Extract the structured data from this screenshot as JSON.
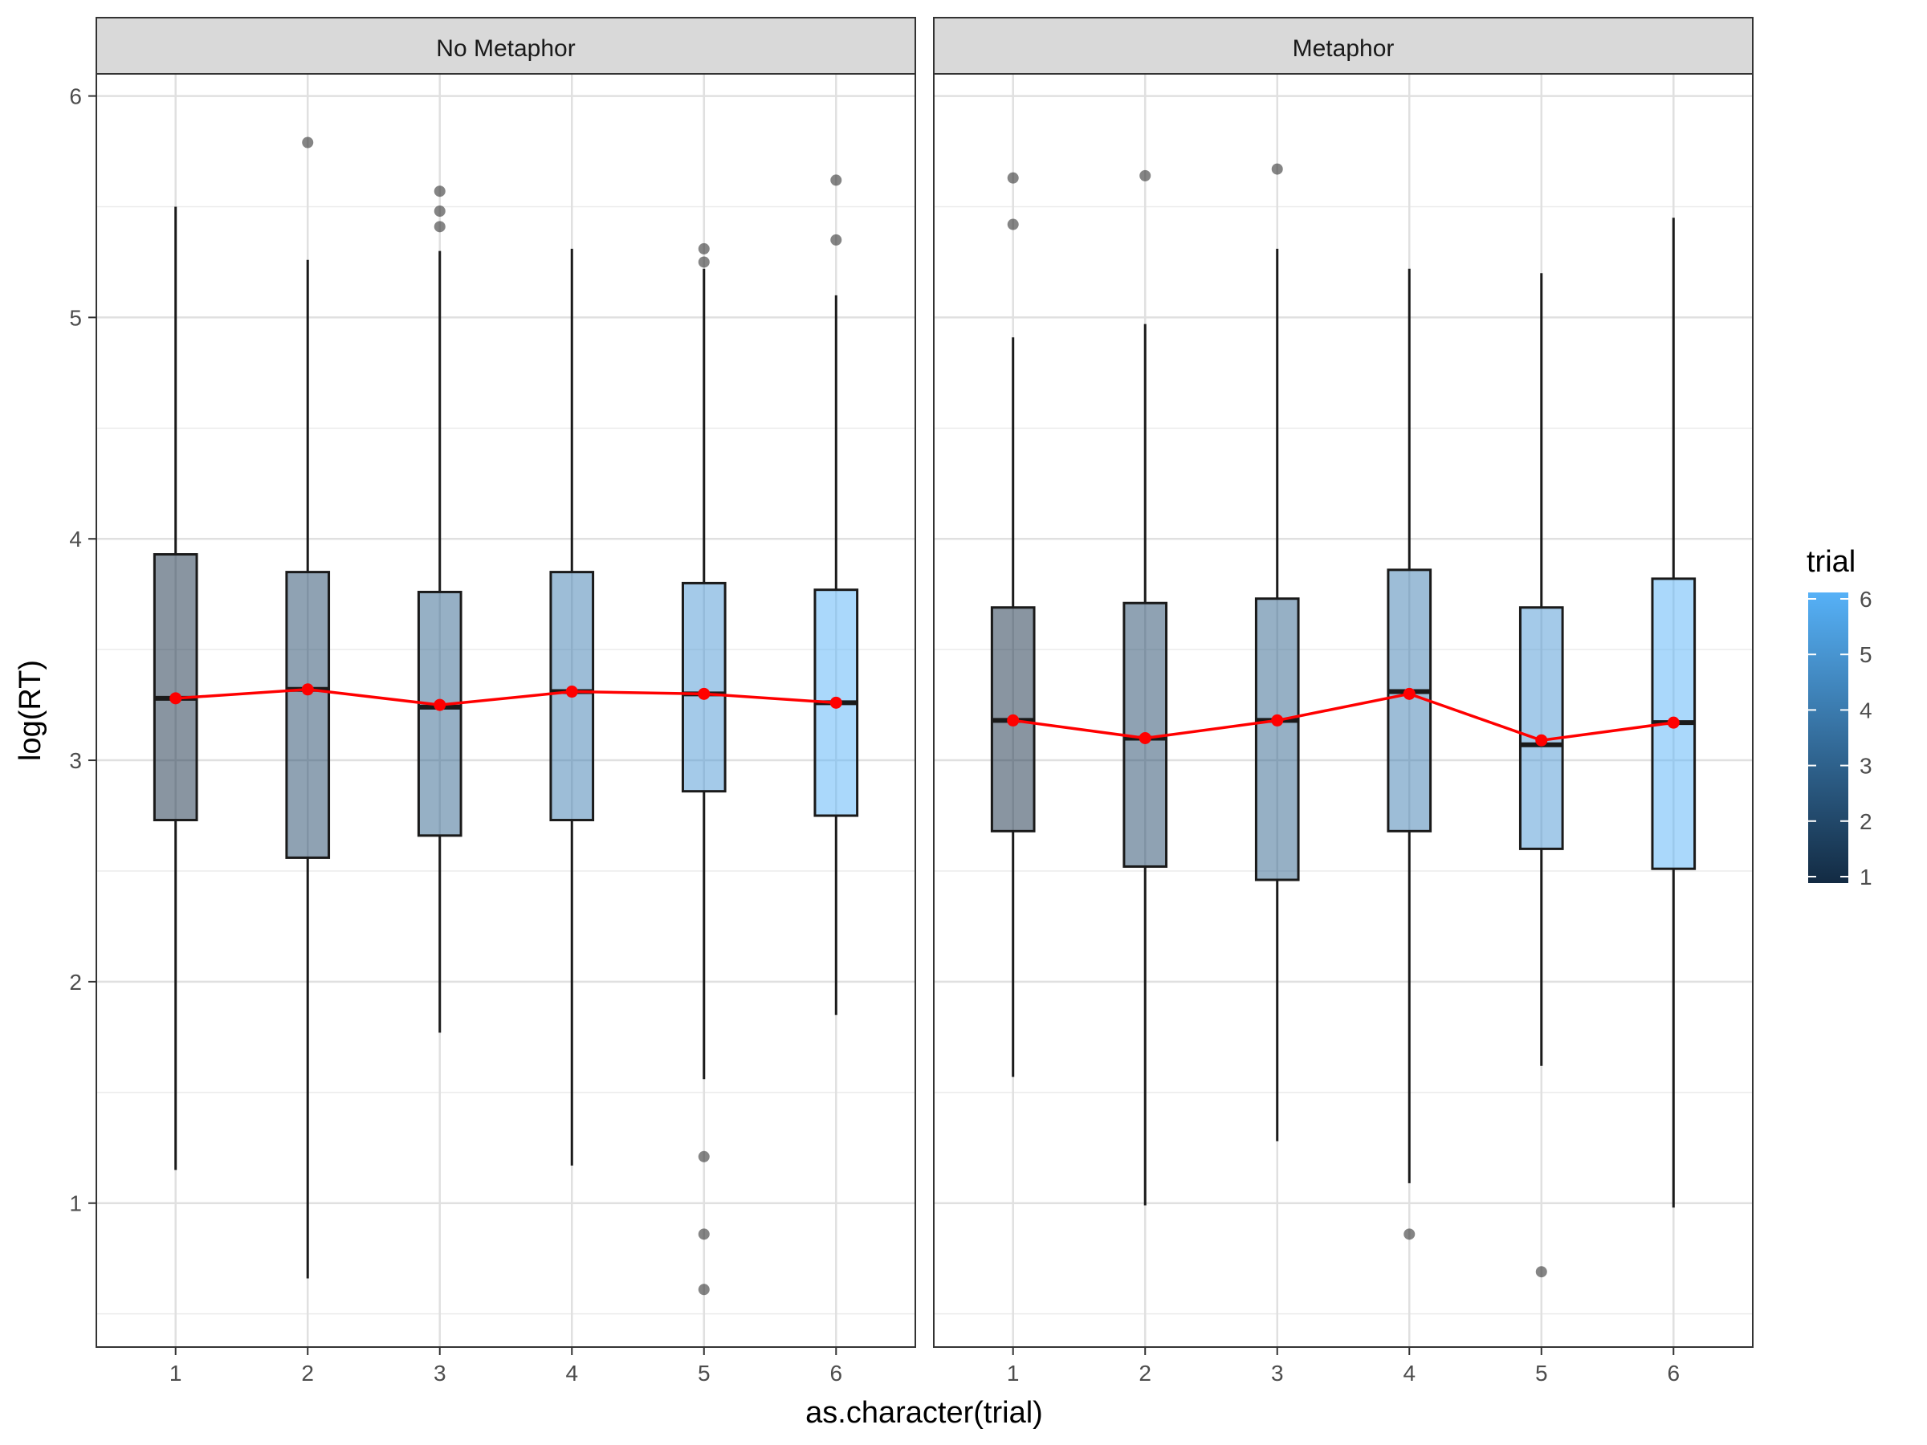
{
  "chart_data": {
    "type": "box",
    "xlabel": "as.character(trial)",
    "ylabel": "log(RT)",
    "ylim": [
      0.35,
      6.1
    ],
    "y_ticks": [
      1,
      2,
      3,
      4,
      5,
      6
    ],
    "categories": [
      "1",
      "2",
      "3",
      "4",
      "5",
      "6"
    ],
    "grid": true,
    "mean_line_color": "#ff0000",
    "box_fill_low": "#132b43",
    "box_fill_high": "#56b1f7",
    "legend": {
      "title": "trial",
      "type": "colorbar",
      "position": "right",
      "labels": [
        "1",
        "2",
        "3",
        "4",
        "5",
        "6"
      ],
      "range": [
        1,
        6
      ]
    },
    "panels": [
      {
        "strip": "No Metaphor",
        "boxes": [
          {
            "x": "1",
            "whisker_low": 1.15,
            "q1": 2.73,
            "median": 3.28,
            "q3": 3.93,
            "whisker_high": 5.5,
            "outliers": []
          },
          {
            "x": "2",
            "whisker_low": 0.66,
            "q1": 2.56,
            "median": 3.32,
            "q3": 3.85,
            "whisker_high": 5.26,
            "outliers": [
              5.79
            ]
          },
          {
            "x": "3",
            "whisker_low": 1.77,
            "q1": 2.66,
            "median": 3.24,
            "q3": 3.76,
            "whisker_high": 5.3,
            "outliers": [
              5.41,
              5.48,
              5.57
            ]
          },
          {
            "x": "4",
            "whisker_low": 1.17,
            "q1": 2.73,
            "median": 3.31,
            "q3": 3.85,
            "whisker_high": 5.31,
            "outliers": []
          },
          {
            "x": "5",
            "whisker_low": 1.56,
            "q1": 2.86,
            "median": 3.3,
            "q3": 3.8,
            "whisker_high": 5.22,
            "outliers": [
              0.61,
              0.86,
              1.21,
              5.25,
              5.31
            ]
          },
          {
            "x": "6",
            "whisker_low": 1.85,
            "q1": 2.75,
            "median": 3.26,
            "q3": 3.77,
            "whisker_high": 5.1,
            "outliers": [
              5.35,
              5.62
            ]
          }
        ],
        "means": [
          3.28,
          3.32,
          3.25,
          3.31,
          3.3,
          3.26
        ]
      },
      {
        "strip": "Metaphor",
        "boxes": [
          {
            "x": "1",
            "whisker_low": 1.57,
            "q1": 2.68,
            "median": 3.18,
            "q3": 3.69,
            "whisker_high": 4.91,
            "outliers": [
              5.42,
              5.63
            ]
          },
          {
            "x": "2",
            "whisker_low": 0.99,
            "q1": 2.52,
            "median": 3.1,
            "q3": 3.71,
            "whisker_high": 4.97,
            "outliers": [
              5.64
            ]
          },
          {
            "x": "3",
            "whisker_low": 1.28,
            "q1": 2.46,
            "median": 3.18,
            "q3": 3.73,
            "whisker_high": 5.31,
            "outliers": [
              5.67
            ]
          },
          {
            "x": "4",
            "whisker_low": 1.09,
            "q1": 2.68,
            "median": 3.31,
            "q3": 3.86,
            "whisker_high": 5.22,
            "outliers": [
              0.86
            ]
          },
          {
            "x": "5",
            "whisker_low": 1.62,
            "q1": 2.6,
            "median": 3.07,
            "q3": 3.69,
            "whisker_high": 5.2,
            "outliers": [
              0.69
            ]
          },
          {
            "x": "6",
            "whisker_low": 0.98,
            "q1": 2.51,
            "median": 3.17,
            "q3": 3.82,
            "whisker_high": 5.45,
            "outliers": []
          }
        ],
        "means": [
          3.18,
          3.1,
          3.18,
          3.3,
          3.09,
          3.17
        ]
      }
    ]
  }
}
